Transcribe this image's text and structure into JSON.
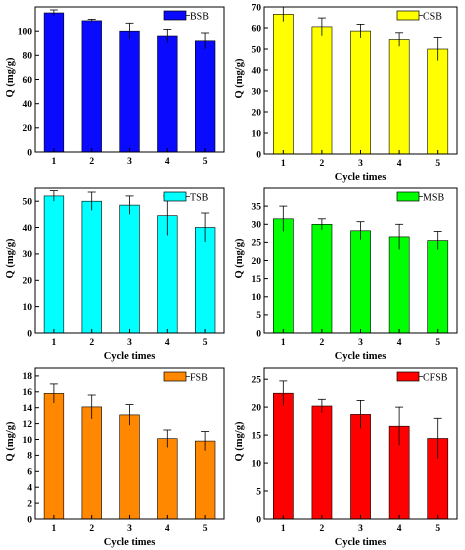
{
  "chart_data": [
    {
      "type": "bar",
      "categories": [
        "1",
        "2",
        "3",
        "4",
        "5"
      ],
      "series": [
        {
          "name": "BSB",
          "values": [
            115,
            108.5,
            100,
            96,
            92
          ],
          "errors": [
            2.5,
            1.2,
            6.5,
            5.5,
            6.5
          ]
        }
      ],
      "xlabel": "",
      "ylabel": "Q (mg/g)",
      "ylim": [
        0,
        120
      ],
      "yticks": [
        0,
        20,
        40,
        60,
        80,
        100
      ],
      "color": "#0a0aff",
      "legend": "top-right",
      "grid": false
    },
    {
      "type": "bar",
      "categories": [
        "1",
        "2",
        "3",
        "4",
        "5"
      ],
      "series": [
        {
          "name": "CSB",
          "values": [
            66.5,
            60.5,
            58.5,
            54.5,
            50
          ],
          "errors": [
            3.5,
            4.2,
            3.2,
            3.2,
            5.5
          ]
        }
      ],
      "xlabel": "Cycle times",
      "ylabel": "Q (mg/g)",
      "ylim": [
        0,
        70
      ],
      "yticks": [
        0,
        10,
        20,
        30,
        40,
        50,
        60,
        70
      ],
      "color": "#ffff00",
      "legend": "top-right",
      "grid": false
    },
    {
      "type": "bar",
      "categories": [
        "1",
        "2",
        "3",
        "4",
        "5"
      ],
      "series": [
        {
          "name": "TSB",
          "values": [
            52,
            50,
            48.5,
            44.5,
            40
          ],
          "errors": [
            2,
            3.5,
            3.5,
            7.5,
            5.5
          ]
        }
      ],
      "xlabel": "Cycle times",
      "ylabel": "Q (mg/g)",
      "ylim": [
        0,
        55
      ],
      "yticks": [
        0,
        10,
        20,
        30,
        40,
        50
      ],
      "color": "#00ffff",
      "legend": "top-right",
      "grid": false
    },
    {
      "type": "bar",
      "categories": [
        "1",
        "2",
        "3",
        "4",
        "5"
      ],
      "series": [
        {
          "name": "MSB",
          "values": [
            31.5,
            30,
            28.2,
            26.5,
            25.5
          ],
          "errors": [
            3.5,
            1.5,
            2.5,
            3.5,
            2.5
          ]
        }
      ],
      "xlabel": "Cycle times",
      "ylabel": "Q (mg/g)",
      "ylim": [
        0,
        40
      ],
      "yticks": [
        0,
        5,
        10,
        15,
        20,
        25,
        30,
        35
      ],
      "color": "#00ff00",
      "legend": "top-right",
      "grid": false
    },
    {
      "type": "bar",
      "categories": [
        "1",
        "2",
        "3",
        "4",
        "5"
      ],
      "series": [
        {
          "name": "FSB",
          "values": [
            15.8,
            14.1,
            13.1,
            10.1,
            9.8
          ],
          "errors": [
            1.2,
            1.5,
            1.3,
            1.1,
            1.2
          ]
        }
      ],
      "xlabel": "Cycle times",
      "ylabel": "Q (mg/g)",
      "ylim": [
        0,
        19
      ],
      "yticks": [
        0,
        2,
        4,
        6,
        8,
        10,
        12,
        14,
        16,
        18
      ],
      "color": "#ff8800",
      "legend": "top-right",
      "grid": false
    },
    {
      "type": "bar",
      "categories": [
        "1",
        "2",
        "3",
        "4",
        "5"
      ],
      "series": [
        {
          "name": "CFSB",
          "values": [
            22.5,
            20.2,
            18.7,
            16.6,
            14.4
          ],
          "errors": [
            2.2,
            1.2,
            2.5,
            3.4,
            3.6
          ]
        }
      ],
      "xlabel": "Cycle times",
      "ylabel": "Q (mg/g)",
      "ylim": [
        0,
        27
      ],
      "yticks": [
        0,
        5,
        10,
        15,
        20,
        25
      ],
      "color": "#ff0000",
      "legend": "top-right",
      "grid": false
    }
  ]
}
